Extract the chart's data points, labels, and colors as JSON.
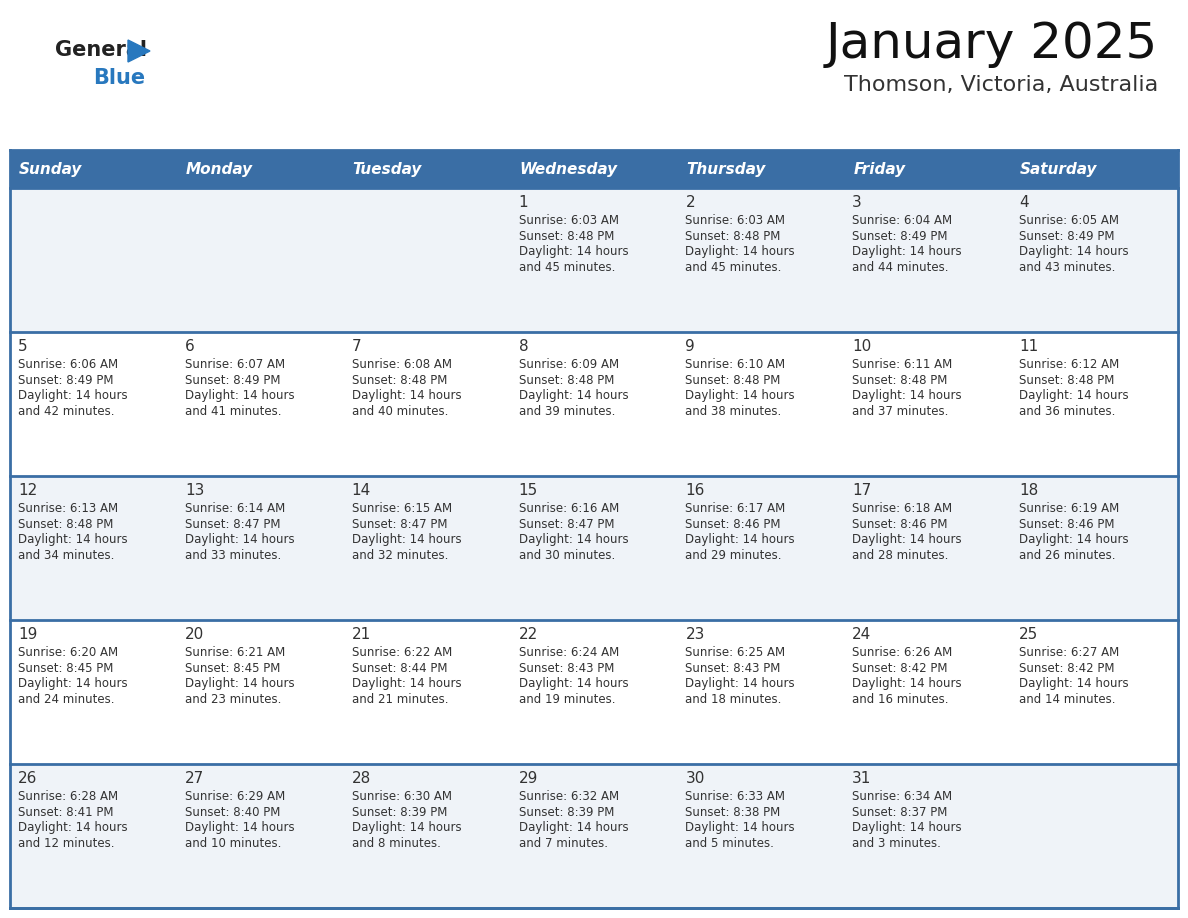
{
  "title": "January 2025",
  "subtitle": "Thomson, Victoria, Australia",
  "days_of_week": [
    "Sunday",
    "Monday",
    "Tuesday",
    "Wednesday",
    "Thursday",
    "Friday",
    "Saturday"
  ],
  "header_bg": "#3a6ea5",
  "header_text": "#ffffff",
  "cell_bg_odd": "#eff3f8",
  "cell_bg_even": "#ffffff",
  "border_color": "#3a6ea5",
  "text_color": "#333333",
  "day_num_color": "#333333",
  "logo_general_color": "#222222",
  "logo_blue_color": "#2878be",
  "calendar_data": [
    [
      {
        "day": null,
        "sunrise": null,
        "sunset": null,
        "daylight": null
      },
      {
        "day": null,
        "sunrise": null,
        "sunset": null,
        "daylight": null
      },
      {
        "day": null,
        "sunrise": null,
        "sunset": null,
        "daylight": null
      },
      {
        "day": 1,
        "sunrise": "6:03 AM",
        "sunset": "8:48 PM",
        "daylight": "14 hours and 45 minutes."
      },
      {
        "day": 2,
        "sunrise": "6:03 AM",
        "sunset": "8:48 PM",
        "daylight": "14 hours and 45 minutes."
      },
      {
        "day": 3,
        "sunrise": "6:04 AM",
        "sunset": "8:49 PM",
        "daylight": "14 hours and 44 minutes."
      },
      {
        "day": 4,
        "sunrise": "6:05 AM",
        "sunset": "8:49 PM",
        "daylight": "14 hours and 43 minutes."
      }
    ],
    [
      {
        "day": 5,
        "sunrise": "6:06 AM",
        "sunset": "8:49 PM",
        "daylight": "14 hours and 42 minutes."
      },
      {
        "day": 6,
        "sunrise": "6:07 AM",
        "sunset": "8:49 PM",
        "daylight": "14 hours and 41 minutes."
      },
      {
        "day": 7,
        "sunrise": "6:08 AM",
        "sunset": "8:48 PM",
        "daylight": "14 hours and 40 minutes."
      },
      {
        "day": 8,
        "sunrise": "6:09 AM",
        "sunset": "8:48 PM",
        "daylight": "14 hours and 39 minutes."
      },
      {
        "day": 9,
        "sunrise": "6:10 AM",
        "sunset": "8:48 PM",
        "daylight": "14 hours and 38 minutes."
      },
      {
        "day": 10,
        "sunrise": "6:11 AM",
        "sunset": "8:48 PM",
        "daylight": "14 hours and 37 minutes."
      },
      {
        "day": 11,
        "sunrise": "6:12 AM",
        "sunset": "8:48 PM",
        "daylight": "14 hours and 36 minutes."
      }
    ],
    [
      {
        "day": 12,
        "sunrise": "6:13 AM",
        "sunset": "8:48 PM",
        "daylight": "14 hours and 34 minutes."
      },
      {
        "day": 13,
        "sunrise": "6:14 AM",
        "sunset": "8:47 PM",
        "daylight": "14 hours and 33 minutes."
      },
      {
        "day": 14,
        "sunrise": "6:15 AM",
        "sunset": "8:47 PM",
        "daylight": "14 hours and 32 minutes."
      },
      {
        "day": 15,
        "sunrise": "6:16 AM",
        "sunset": "8:47 PM",
        "daylight": "14 hours and 30 minutes."
      },
      {
        "day": 16,
        "sunrise": "6:17 AM",
        "sunset": "8:46 PM",
        "daylight": "14 hours and 29 minutes."
      },
      {
        "day": 17,
        "sunrise": "6:18 AM",
        "sunset": "8:46 PM",
        "daylight": "14 hours and 28 minutes."
      },
      {
        "day": 18,
        "sunrise": "6:19 AM",
        "sunset": "8:46 PM",
        "daylight": "14 hours and 26 minutes."
      }
    ],
    [
      {
        "day": 19,
        "sunrise": "6:20 AM",
        "sunset": "8:45 PM",
        "daylight": "14 hours and 24 minutes."
      },
      {
        "day": 20,
        "sunrise": "6:21 AM",
        "sunset": "8:45 PM",
        "daylight": "14 hours and 23 minutes."
      },
      {
        "day": 21,
        "sunrise": "6:22 AM",
        "sunset": "8:44 PM",
        "daylight": "14 hours and 21 minutes."
      },
      {
        "day": 22,
        "sunrise": "6:24 AM",
        "sunset": "8:43 PM",
        "daylight": "14 hours and 19 minutes."
      },
      {
        "day": 23,
        "sunrise": "6:25 AM",
        "sunset": "8:43 PM",
        "daylight": "14 hours and 18 minutes."
      },
      {
        "day": 24,
        "sunrise": "6:26 AM",
        "sunset": "8:42 PM",
        "daylight": "14 hours and 16 minutes."
      },
      {
        "day": 25,
        "sunrise": "6:27 AM",
        "sunset": "8:42 PM",
        "daylight": "14 hours and 14 minutes."
      }
    ],
    [
      {
        "day": 26,
        "sunrise": "6:28 AM",
        "sunset": "8:41 PM",
        "daylight": "14 hours and 12 minutes."
      },
      {
        "day": 27,
        "sunrise": "6:29 AM",
        "sunset": "8:40 PM",
        "daylight": "14 hours and 10 minutes."
      },
      {
        "day": 28,
        "sunrise": "6:30 AM",
        "sunset": "8:39 PM",
        "daylight": "14 hours and 8 minutes."
      },
      {
        "day": 29,
        "sunrise": "6:32 AM",
        "sunset": "8:39 PM",
        "daylight": "14 hours and 7 minutes."
      },
      {
        "day": 30,
        "sunrise": "6:33 AM",
        "sunset": "8:38 PM",
        "daylight": "14 hours and 5 minutes."
      },
      {
        "day": 31,
        "sunrise": "6:34 AM",
        "sunset": "8:37 PM",
        "daylight": "14 hours and 3 minutes."
      },
      {
        "day": null,
        "sunrise": null,
        "sunset": null,
        "daylight": null
      }
    ]
  ]
}
